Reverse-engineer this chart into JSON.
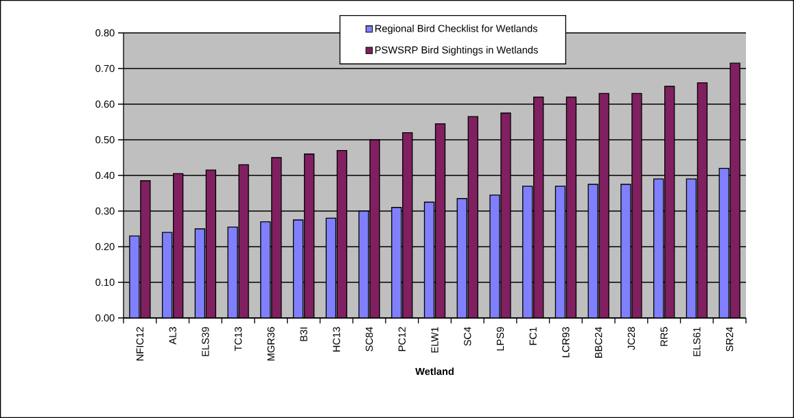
{
  "chart_data": {
    "type": "bar",
    "xlabel": "Wetland",
    "categories": [
      "NFIC12",
      "AL3",
      "ELS39",
      "TC13",
      "MGR36",
      "B3I",
      "HC13",
      "SC84",
      "PC12",
      "ELW1",
      "SC4",
      "LPS9",
      "FC1",
      "LCR93",
      "BBC24",
      "JC28",
      "RR5",
      "ELS61",
      "SR24"
    ],
    "series": [
      {
        "name": "Regional Bird Checklist for Wetlands",
        "color": "#8080ff",
        "values": [
          0.23,
          0.24,
          0.25,
          0.255,
          0.27,
          0.275,
          0.28,
          0.3,
          0.31,
          0.325,
          0.335,
          0.345,
          0.37,
          0.37,
          0.375,
          0.375,
          0.39,
          0.39,
          0.42
        ]
      },
      {
        "name": "PSWSRP Bird Sightings in Wetlands",
        "color": "#802060",
        "values": [
          0.385,
          0.405,
          0.415,
          0.43,
          0.45,
          0.46,
          0.47,
          0.5,
          0.52,
          0.545,
          0.565,
          0.575,
          0.62,
          0.62,
          0.63,
          0.63,
          0.65,
          0.66,
          0.715
        ]
      }
    ],
    "ylim": [
      0,
      0.8
    ],
    "yticks": [
      {
        "value": 0,
        "label": "0.00"
      },
      {
        "value": 0.1,
        "label": "0.10"
      },
      {
        "value": 0.2,
        "label": "0.20"
      },
      {
        "value": 0.3,
        "label": "0.30"
      },
      {
        "value": 0.4,
        "label": "0.40"
      },
      {
        "value": 0.5,
        "label": "0.50"
      },
      {
        "value": 0.6,
        "label": "0.60"
      },
      {
        "value": 0.7,
        "label": "0.70"
      },
      {
        "value": 0.8,
        "label": "0.80"
      }
    ],
    "grid": "y",
    "legend": "top"
  }
}
